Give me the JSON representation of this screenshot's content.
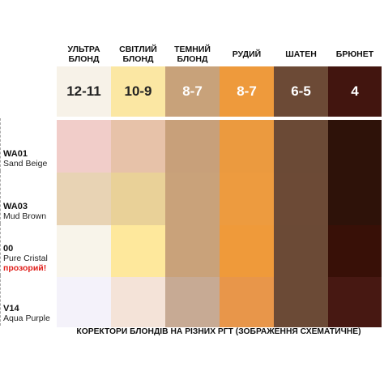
{
  "columns": [
    {
      "header_line1": "УЛЬТРА",
      "header_line2": "БЛОНД",
      "level": "12-11",
      "top_color": "#f7f2e8",
      "level_text_color": "#222222"
    },
    {
      "header_line1": "СВІТЛИЙ",
      "header_line2": "БЛОНД",
      "level": "10-9",
      "top_color": "#fbe7a3",
      "level_text_color": "#222222"
    },
    {
      "header_line1": "ТЕМНИЙ",
      "header_line2": "БЛОНД",
      "level": "8-7",
      "top_color": "#c8a27a",
      "level_text_color": "#ffffff"
    },
    {
      "header_line1": "РУДИЙ",
      "header_line2": "",
      "level": "8-7",
      "top_color": "#ee9a3c",
      "level_text_color": "#ffffff"
    },
    {
      "header_line1": "ШАТЕН",
      "header_line2": "",
      "level": "6-5",
      "top_color": "#6c4a36",
      "level_text_color": "#ffffff"
    },
    {
      "header_line1": "БРЮНЕТ",
      "header_line2": "",
      "level": "4",
      "top_color": "#42150f",
      "level_text_color": "#ffffff"
    }
  ],
  "rows": [
    {
      "code": "WA01",
      "name": "Sand Beige",
      "note": "",
      "colors": [
        "#f1cdc9",
        "#e7c2a9",
        "#c8a07a",
        "#eb9a3f",
        "#6b4a36",
        "#2e1209"
      ]
    },
    {
      "code": "WA03",
      "name": "Mud Brown",
      "note": "",
      "colors": [
        "#e8d3b4",
        "#e9d198",
        "#c9a27a",
        "#ed9b3f",
        "#6c4a36",
        "#2e1209"
      ]
    },
    {
      "code": "00",
      "name": "Pure Cristal",
      "note": "прозорий!",
      "colors": [
        "#f8f4ea",
        "#fee89c",
        "#c9a27a",
        "#ef9a3a",
        "#6b4a36",
        "#381007"
      ]
    },
    {
      "code": "V14",
      "name": "Aqua Purple",
      "note": "",
      "colors": [
        "#f4f2fa",
        "#f4e3d8",
        "#c7aa94",
        "#e8964a",
        "#6b4a36",
        "#471812"
      ]
    }
  ],
  "footer": "КОРЕКТОРИ БЛОНДІВ НА РІЗНИХ РГТ (ЗОБРАЖЕННЯ СХЕМАТИЧНЕ)"
}
